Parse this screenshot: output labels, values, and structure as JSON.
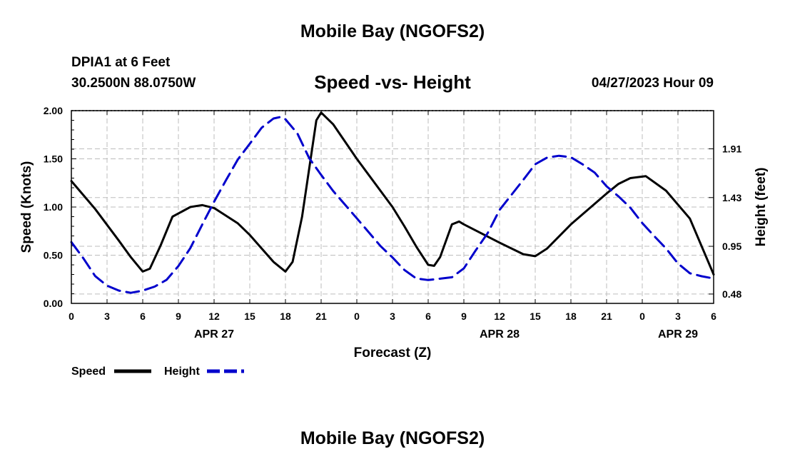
{
  "header": {
    "title": "Mobile Bay (NGOFS2)",
    "station": "DPIA1 at 6 Feet",
    "coords": "30.2500N   88.0750W",
    "forecast_time": "04/27/2023 Hour 09"
  },
  "footer": {
    "title": "Mobile Bay (NGOFS2)"
  },
  "chart_data": {
    "type": "line",
    "title": "Speed -vs- Height",
    "xlabel": "Forecast (Z)",
    "ylabel": "Speed (Knots)",
    "y2label": "Height (feet)",
    "x_ticks": [
      "0",
      "3",
      "6",
      "9",
      "12",
      "15",
      "18",
      "21",
      "0",
      "3",
      "6",
      "9",
      "12",
      "15",
      "18",
      "21",
      "0",
      "3",
      "6"
    ],
    "x_range_hours": [
      0,
      54
    ],
    "date_labels": [
      {
        "label": "APR 27",
        "hour": 12
      },
      {
        "label": "APR 28",
        "hour": 36
      },
      {
        "label": "APR 29",
        "hour": 51
      }
    ],
    "ylim": [
      0,
      2
    ],
    "y_ticks": [
      "0.00",
      "0.50",
      "1.00",
      "1.50",
      "2.00"
    ],
    "y2_ticks": [
      {
        "label": "0.48",
        "value": 0.48
      },
      {
        "label": "0.95",
        "value": 0.95
      },
      {
        "label": "1.43",
        "value": 1.43
      },
      {
        "label": "1.91",
        "value": 1.91
      }
    ],
    "y2lim": [
      0.388,
      2.286
    ],
    "grid": true,
    "legend_position": "bottom-left",
    "series": [
      {
        "name": "Speed",
        "axis": "left",
        "color": "#000000",
        "style": "solid",
        "points": [
          [
            0,
            1.27
          ],
          [
            2,
            0.98
          ],
          [
            4,
            0.65
          ],
          [
            5,
            0.48
          ],
          [
            6,
            0.33
          ],
          [
            6.6,
            0.36
          ],
          [
            7.5,
            0.6
          ],
          [
            8.5,
            0.9
          ],
          [
            10,
            1.0
          ],
          [
            11,
            1.02
          ],
          [
            12,
            0.99
          ],
          [
            14,
            0.83
          ],
          [
            15,
            0.71
          ],
          [
            16,
            0.57
          ],
          [
            17,
            0.43
          ],
          [
            18,
            0.33
          ],
          [
            18.6,
            0.43
          ],
          [
            19.4,
            0.9
          ],
          [
            20,
            1.4
          ],
          [
            20.6,
            1.9
          ],
          [
            21,
            1.98
          ],
          [
            22,
            1.86
          ],
          [
            24,
            1.5
          ],
          [
            27,
            1.0
          ],
          [
            28,
            0.8
          ],
          [
            29,
            0.59
          ],
          [
            30,
            0.4
          ],
          [
            30.5,
            0.39
          ],
          [
            31,
            0.48
          ],
          [
            32,
            0.82
          ],
          [
            32.6,
            0.85
          ],
          [
            33,
            0.82
          ],
          [
            36,
            0.63
          ],
          [
            38,
            0.51
          ],
          [
            39,
            0.49
          ],
          [
            40,
            0.57
          ],
          [
            42,
            0.82
          ],
          [
            45,
            1.14
          ],
          [
            46,
            1.24
          ],
          [
            47,
            1.3
          ],
          [
            48.3,
            1.32
          ],
          [
            50,
            1.17
          ],
          [
            52,
            0.88
          ],
          [
            54,
            0.3
          ]
        ]
      },
      {
        "name": "Height",
        "axis": "right",
        "color": "#0000cc",
        "style": "dashed",
        "points": [
          [
            0,
            0.991
          ],
          [
            1,
            0.833
          ],
          [
            2,
            0.657
          ],
          [
            3,
            0.562
          ],
          [
            4,
            0.514
          ],
          [
            5,
            0.492
          ],
          [
            6,
            0.514
          ],
          [
            7,
            0.553
          ],
          [
            8,
            0.619
          ],
          [
            9,
            0.756
          ],
          [
            10,
            0.932
          ],
          [
            11,
            1.163
          ],
          [
            12,
            1.389
          ],
          [
            13,
            1.601
          ],
          [
            14,
            1.805
          ],
          [
            15,
            1.96
          ],
          [
            16,
            2.118
          ],
          [
            17,
            2.209
          ],
          [
            17.6,
            2.224
          ],
          [
            18,
            2.201
          ],
          [
            19,
            2.062
          ],
          [
            20,
            1.818
          ],
          [
            21,
            1.653
          ],
          [
            22,
            1.496
          ],
          [
            24,
            1.226
          ],
          [
            26,
            0.952
          ],
          [
            27,
            0.84
          ],
          [
            28,
            0.717
          ],
          [
            29,
            0.633
          ],
          [
            30,
            0.618
          ],
          [
            31,
            0.631
          ],
          [
            32,
            0.645
          ],
          [
            33,
            0.733
          ],
          [
            34,
            0.911
          ],
          [
            35,
            1.079
          ],
          [
            36,
            1.308
          ],
          [
            38,
            1.605
          ],
          [
            39,
            1.758
          ],
          [
            40,
            1.824
          ],
          [
            41,
            1.842
          ],
          [
            42,
            1.827
          ],
          [
            43,
            1.756
          ],
          [
            44,
            1.676
          ],
          [
            45,
            1.541
          ],
          [
            46,
            1.442
          ],
          [
            47,
            1.33
          ],
          [
            48,
            1.179
          ],
          [
            49,
            1.051
          ],
          [
            50,
            0.929
          ],
          [
            51,
            0.781
          ],
          [
            52,
            0.685
          ],
          [
            53,
            0.655
          ],
          [
            54,
            0.633
          ]
        ]
      }
    ]
  }
}
